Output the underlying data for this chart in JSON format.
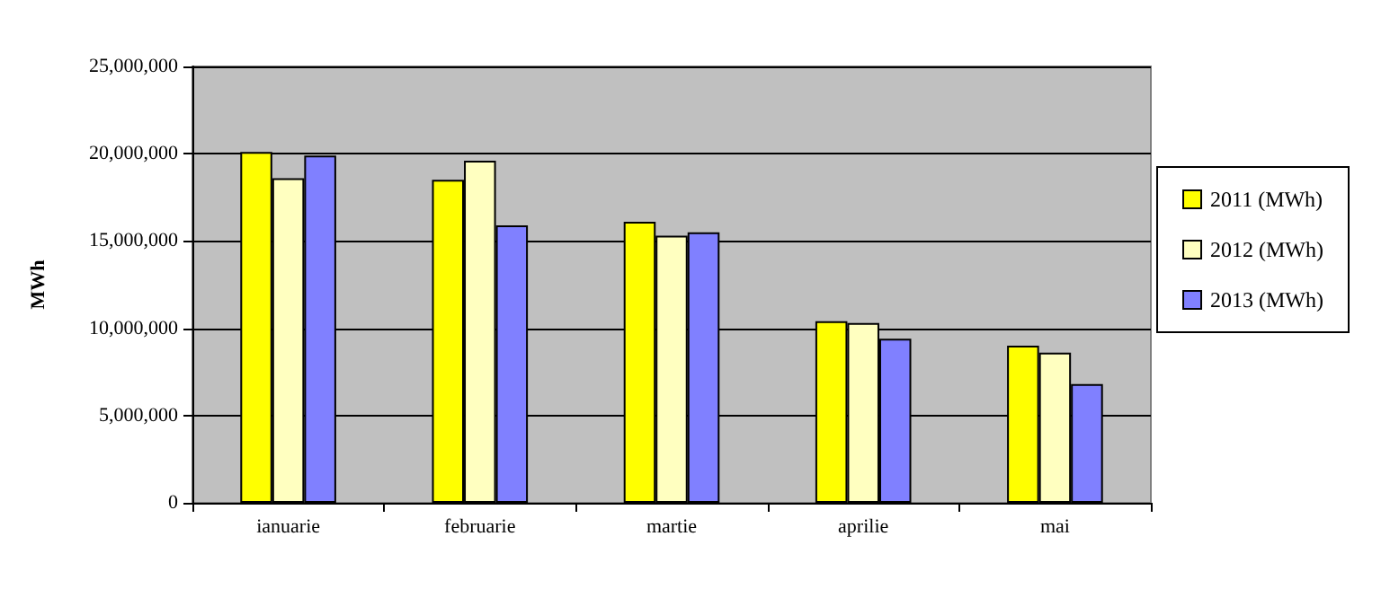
{
  "chart_data": {
    "type": "bar",
    "ylabel": "MWh",
    "categories": [
      "ianuarie",
      "februarie",
      "martie",
      "aprilie",
      "mai"
    ],
    "series": [
      {
        "name": "2011 (MWh)",
        "color": "#ffff00",
        "values": [
          20100000,
          18500000,
          16100000,
          10400000,
          9000000
        ]
      },
      {
        "name": "2012 (MWh)",
        "color": "#ffffc0",
        "values": [
          18600000,
          19600000,
          15300000,
          10300000,
          8600000
        ]
      },
      {
        "name": "2013 (MWh)",
        "color": "#8080ff",
        "values": [
          19900000,
          15900000,
          15500000,
          9400000,
          6800000
        ]
      }
    ],
    "ylim": [
      0,
      25000000
    ],
    "yticks": [
      0,
      {
        "value": 5000000,
        "label": "5,000,000"
      },
      {
        "value": 10000000,
        "label": "10,000,000"
      },
      {
        "value": 15000000,
        "label": "15,000,000"
      },
      {
        "value": 20000000,
        "label": "20,000,000"
      },
      {
        "value": 25000000,
        "label": "25,000,000"
      }
    ],
    "grid": "y",
    "legend": "right"
  }
}
